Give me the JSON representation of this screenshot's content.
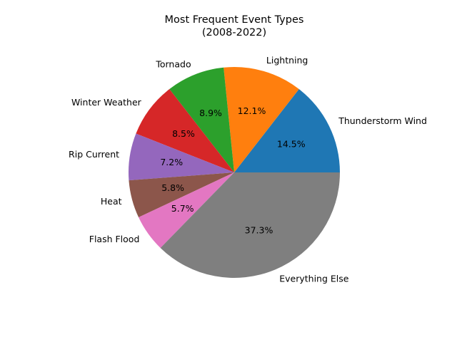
{
  "chart_data": {
    "type": "pie",
    "title": "Most Frequent Event Types",
    "subtitle": "(2008-2022)",
    "autopct_format": "percent-1-decimal",
    "start_angle_deg": 0,
    "direction": "counterclockwise",
    "slices": [
      {
        "label": "Thunderstorm Wind",
        "value": 14.5,
        "pct_label": "14.5%",
        "color": "#1f77b4"
      },
      {
        "label": "Lightning",
        "value": 12.1,
        "pct_label": "12.1%",
        "color": "#ff7f0e"
      },
      {
        "label": "Tornado",
        "value": 8.9,
        "pct_label": "8.9%",
        "color": "#2ca02c"
      },
      {
        "label": "Winter Weather",
        "value": 8.5,
        "pct_label": "8.5%",
        "color": "#d62728"
      },
      {
        "label": "Rip Current",
        "value": 7.2,
        "pct_label": "7.2%",
        "color": "#9467bd"
      },
      {
        "label": "Heat",
        "value": 5.8,
        "pct_label": "5.8%",
        "color": "#8c564b"
      },
      {
        "label": "Flash Flood",
        "value": 5.7,
        "pct_label": "5.7%",
        "color": "#e377c2"
      },
      {
        "label": "Everything Else",
        "value": 37.3,
        "pct_label": "37.3%",
        "color": "#7f7f7f"
      }
    ]
  }
}
